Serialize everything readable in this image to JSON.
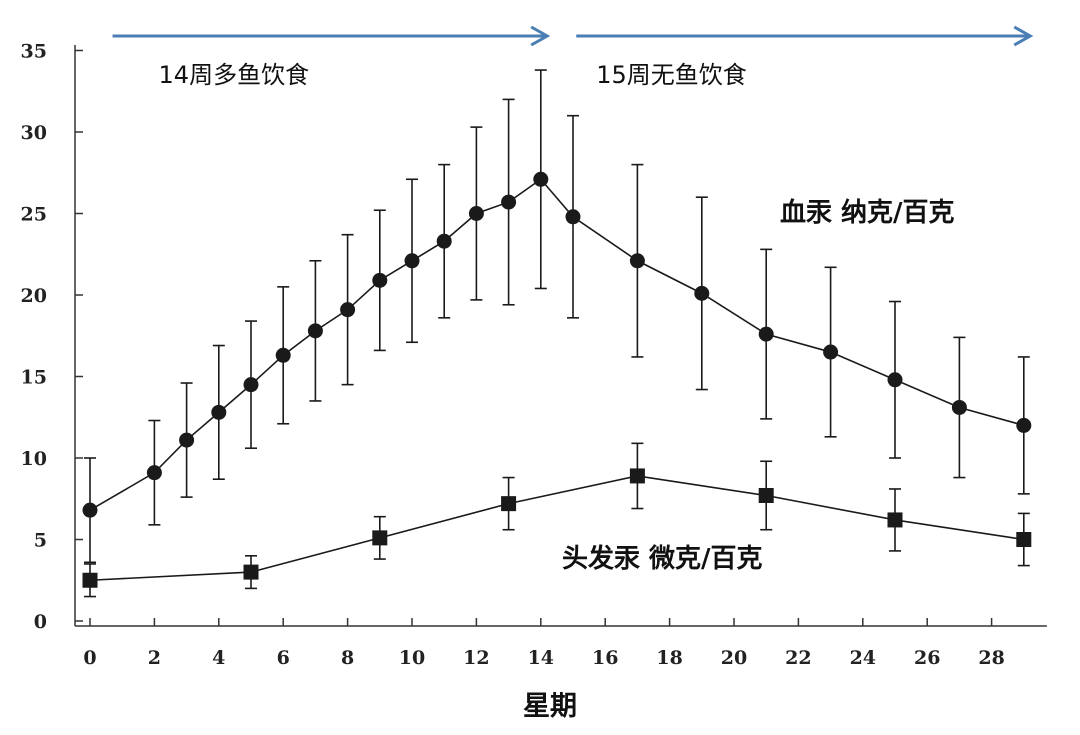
{
  "chart_data": {
    "type": "line",
    "xlabel": "星期",
    "ylabel": "",
    "xlim": [
      0,
      29.5
    ],
    "ylim": [
      0,
      35
    ],
    "x_ticks": [
      0,
      2,
      4,
      6,
      8,
      10,
      12,
      14,
      16,
      18,
      20,
      22,
      24,
      26,
      28
    ],
    "y_ticks": [
      0,
      5,
      10,
      15,
      20,
      25,
      30,
      35
    ],
    "grid": false,
    "colors": {
      "series": "#1a1a1a",
      "arrow": "#4a7eb5"
    },
    "phases": [
      {
        "label": "14周多鱼饮食",
        "from": 0.7,
        "to": 14.2
      },
      {
        "label": "15周无鱼饮食",
        "from": 15.1,
        "to": 29.2
      }
    ],
    "series": [
      {
        "name": "血汞 纳克/百克",
        "marker": "circle",
        "x": [
          0,
          2,
          3,
          4,
          5,
          6,
          7,
          8,
          9,
          10,
          11,
          12,
          13,
          14,
          15,
          17,
          19,
          21,
          23,
          25,
          27,
          29
        ],
        "values": [
          6.8,
          9.1,
          11.1,
          12.8,
          14.5,
          16.3,
          17.8,
          19.1,
          20.9,
          22.1,
          23.3,
          25.0,
          25.7,
          27.1,
          24.8,
          22.1,
          20.1,
          17.6,
          16.5,
          14.8,
          13.1,
          12.0
        ],
        "error": [
          3.2,
          3.2,
          3.5,
          4.1,
          3.9,
          4.2,
          4.3,
          4.6,
          4.3,
          5.0,
          4.7,
          5.3,
          6.3,
          6.7,
          6.2,
          5.9,
          5.9,
          5.2,
          5.2,
          4.8,
          4.3,
          4.2
        ]
      },
      {
        "name": "头发汞 微克/百克",
        "marker": "square",
        "x": [
          0,
          5,
          9,
          13,
          17,
          21,
          25,
          29
        ],
        "values": [
          2.5,
          3.0,
          5.1,
          7.2,
          8.9,
          7.7,
          6.2,
          5.0
        ],
        "error": [
          1.0,
          1.0,
          1.3,
          1.6,
          2.0,
          2.1,
          1.9,
          1.6
        ]
      }
    ]
  }
}
